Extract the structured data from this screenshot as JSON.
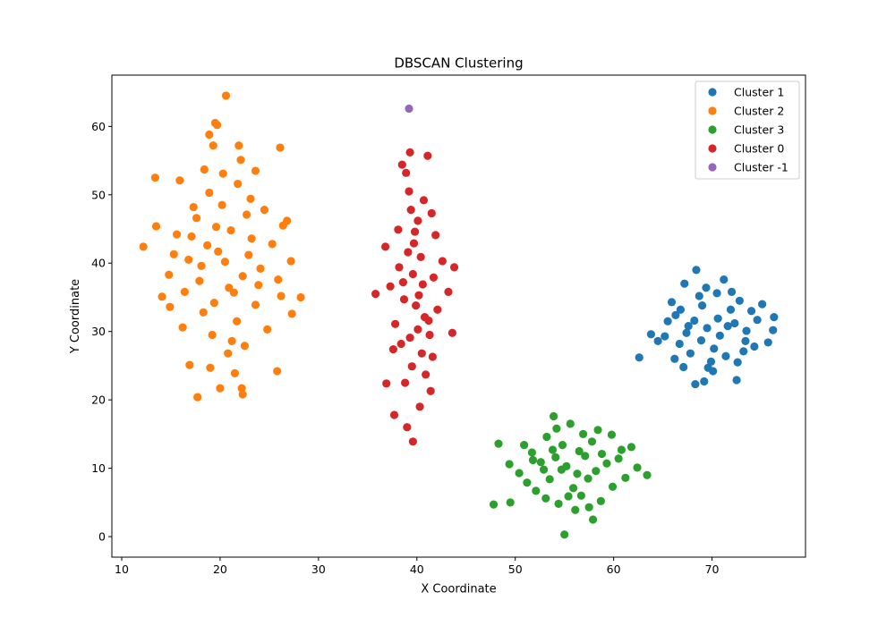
{
  "chart_data": {
    "type": "scatter",
    "title": "DBSCAN Clustering",
    "xlabel": "X Coordinate",
    "ylabel": "Y Coordinate",
    "xlim": [
      9.0,
      79.5
    ],
    "ylim": [
      -3.0,
      67.5
    ],
    "xticks": [
      10,
      20,
      30,
      40,
      50,
      60,
      70
    ],
    "yticks": [
      0,
      10,
      20,
      30,
      40,
      50,
      60
    ],
    "grid": false,
    "legend_position": "top-right",
    "series": [
      {
        "name": "Cluster 1",
        "color": "#1f77b4",
        "points": [
          [
            69.5,
            30.5
          ],
          [
            68.2,
            31.6
          ],
          [
            70.8,
            29.4
          ],
          [
            71.6,
            30.8
          ],
          [
            67.4,
            29.8
          ],
          [
            72.3,
            31.2
          ],
          [
            66.3,
            32.4
          ],
          [
            73.5,
            30.1
          ],
          [
            69.0,
            33.8
          ],
          [
            70.2,
            27.5
          ],
          [
            68.7,
            35.2
          ],
          [
            71.4,
            26.4
          ],
          [
            65.2,
            29.3
          ],
          [
            74.6,
            31.7
          ],
          [
            69.6,
            24.7
          ],
          [
            66.8,
            33.2
          ],
          [
            72.8,
            34.5
          ],
          [
            64.5,
            28.6
          ],
          [
            75.7,
            28.4
          ],
          [
            71.2,
            37.6
          ],
          [
            68.4,
            39.0
          ],
          [
            67.2,
            37.0
          ],
          [
            68.3,
            22.3
          ],
          [
            69.2,
            22.7
          ],
          [
            72.5,
            22.9
          ],
          [
            62.6,
            26.2
          ],
          [
            76.3,
            32.1
          ],
          [
            76.2,
            30.2
          ],
          [
            75.1,
            34.0
          ],
          [
            63.8,
            29.6
          ],
          [
            66.2,
            26.0
          ],
          [
            73.2,
            27.1
          ],
          [
            70.5,
            35.6
          ],
          [
            67.8,
            26.8
          ],
          [
            72.0,
            35.8
          ],
          [
            69.9,
            25.6
          ],
          [
            74.0,
            33.0
          ],
          [
            65.5,
            31.5
          ],
          [
            66.7,
            28.2
          ],
          [
            70.6,
            31.9
          ],
          [
            73.4,
            28.6
          ],
          [
            68.9,
            28.7
          ],
          [
            71.9,
            33.2
          ],
          [
            67.6,
            30.8
          ],
          [
            69.4,
            36.4
          ],
          [
            65.9,
            34.3
          ],
          [
            74.3,
            27.8
          ],
          [
            70.1,
            24.2
          ],
          [
            72.6,
            25.5
          ],
          [
            67.1,
            24.8
          ]
        ]
      },
      {
        "name": "Cluster 2",
        "color": "#ff7f0e",
        "points": [
          [
            20.5,
            40.2
          ],
          [
            18.7,
            42.6
          ],
          [
            22.3,
            38.1
          ],
          [
            19.6,
            45.3
          ],
          [
            21.4,
            35.7
          ],
          [
            17.9,
            37.4
          ],
          [
            23.2,
            43.6
          ],
          [
            16.8,
            40.5
          ],
          [
            24.1,
            39.2
          ],
          [
            20.2,
            48.5
          ],
          [
            18.3,
            32.8
          ],
          [
            22.7,
            47.1
          ],
          [
            15.6,
            44.2
          ],
          [
            25.3,
            42.8
          ],
          [
            19.2,
            29.5
          ],
          [
            21.8,
            51.6
          ],
          [
            17.3,
            48.2
          ],
          [
            23.6,
            33.9
          ],
          [
            14.8,
            38.3
          ],
          [
            26.4,
            45.5
          ],
          [
            20.8,
            26.8
          ],
          [
            18.4,
            53.7
          ],
          [
            22.1,
            55.1
          ],
          [
            16.2,
            30.6
          ],
          [
            24.8,
            30.3
          ],
          [
            19.3,
            57.2
          ],
          [
            21.5,
            23.9
          ],
          [
            13.5,
            45.4
          ],
          [
            27.2,
            40.3
          ],
          [
            12.2,
            42.4
          ],
          [
            28.2,
            35.0
          ],
          [
            26.8,
            46.2
          ],
          [
            13.4,
            52.5
          ],
          [
            20.6,
            64.5
          ],
          [
            19.5,
            60.5
          ],
          [
            19.7,
            60.2
          ],
          [
            18.9,
            58.8
          ],
          [
            21.9,
            57.2
          ],
          [
            26.1,
            56.9
          ],
          [
            17.7,
            20.4
          ],
          [
            20.0,
            21.7
          ],
          [
            22.3,
            20.8
          ],
          [
            22.2,
            21.7
          ],
          [
            25.8,
            24.2
          ],
          [
            16.9,
            25.1
          ],
          [
            14.1,
            35.1
          ],
          [
            27.3,
            32.6
          ],
          [
            15.9,
            52.1
          ],
          [
            23.6,
            53.5
          ],
          [
            20.9,
            36.4
          ],
          [
            19.8,
            41.7
          ],
          [
            21.1,
            44.8
          ],
          [
            18.1,
            39.6
          ],
          [
            22.9,
            41.2
          ],
          [
            17.1,
            43.9
          ],
          [
            23.9,
            36.8
          ],
          [
            19.4,
            34.2
          ],
          [
            21.7,
            31.5
          ],
          [
            16.4,
            35.8
          ],
          [
            24.5,
            47.8
          ],
          [
            18.9,
            50.3
          ],
          [
            22.5,
            27.9
          ],
          [
            15.3,
            41.3
          ],
          [
            25.9,
            37.6
          ],
          [
            20.3,
            53.1
          ],
          [
            17.6,
            46.6
          ],
          [
            23.1,
            49.4
          ],
          [
            14.9,
            33.6
          ],
          [
            26.2,
            35.2
          ],
          [
            19.0,
            24.7
          ],
          [
            21.2,
            28.6
          ]
        ]
      },
      {
        "name": "Cluster 3",
        "color": "#2ca02c",
        "points": [
          [
            55.2,
            10.3
          ],
          [
            54.1,
            11.6
          ],
          [
            56.3,
            9.2
          ],
          [
            53.5,
            8.4
          ],
          [
            57.1,
            11.8
          ],
          [
            52.6,
            10.9
          ],
          [
            58.2,
            9.6
          ],
          [
            54.8,
            13.4
          ],
          [
            55.9,
            7.1
          ],
          [
            51.7,
            12.3
          ],
          [
            59.3,
            10.7
          ],
          [
            53.2,
            14.6
          ],
          [
            56.7,
            6.0
          ],
          [
            50.4,
            9.3
          ],
          [
            60.5,
            11.4
          ],
          [
            54.2,
            15.8
          ],
          [
            57.8,
            13.9
          ],
          [
            52.1,
            6.7
          ],
          [
            61.2,
            8.6
          ],
          [
            55.6,
            16.5
          ],
          [
            58.7,
            5.2
          ],
          [
            49.4,
            10.6
          ],
          [
            62.4,
            10.1
          ],
          [
            53.9,
            17.6
          ],
          [
            56.1,
            3.9
          ],
          [
            48.3,
            13.6
          ],
          [
            63.4,
            9.0
          ],
          [
            47.8,
            4.7
          ],
          [
            49.5,
            5.0
          ],
          [
            55.0,
            0.3
          ],
          [
            57.9,
            2.5
          ],
          [
            59.8,
            14.9
          ],
          [
            61.8,
            13.1
          ],
          [
            54.7,
            9.8
          ],
          [
            56.5,
            12.5
          ],
          [
            53.8,
            12.7
          ],
          [
            57.4,
            8.5
          ],
          [
            52.9,
            9.8
          ],
          [
            58.8,
            12.1
          ],
          [
            55.4,
            5.9
          ],
          [
            51.2,
            7.9
          ],
          [
            59.9,
            7.3
          ],
          [
            54.4,
            4.8
          ],
          [
            56.9,
            15.0
          ],
          [
            50.9,
            13.4
          ],
          [
            60.8,
            12.7
          ],
          [
            53.1,
            5.6
          ],
          [
            57.5,
            4.3
          ],
          [
            51.8,
            11.2
          ],
          [
            58.4,
            15.6
          ]
        ]
      },
      {
        "name": "Cluster 0",
        "color": "#d62728",
        "points": [
          [
            40.2,
            35.3
          ],
          [
            39.6,
            38.4
          ],
          [
            40.8,
            32.1
          ],
          [
            39.1,
            41.6
          ],
          [
            41.3,
            29.5
          ],
          [
            38.7,
            34.7
          ],
          [
            41.7,
            37.9
          ],
          [
            39.8,
            44.6
          ],
          [
            40.5,
            26.8
          ],
          [
            38.2,
            39.4
          ],
          [
            42.1,
            33.2
          ],
          [
            39.4,
            47.8
          ],
          [
            40.9,
            23.7
          ],
          [
            37.8,
            31.1
          ],
          [
            42.6,
            40.3
          ],
          [
            39.2,
            50.5
          ],
          [
            41.4,
            21.3
          ],
          [
            37.3,
            36.6
          ],
          [
            43.2,
            35.8
          ],
          [
            38.9,
            53.2
          ],
          [
            40.3,
            19.0
          ],
          [
            36.8,
            42.4
          ],
          [
            43.8,
            39.4
          ],
          [
            38.5,
            54.4
          ],
          [
            41.1,
            55.7
          ],
          [
            39.3,
            56.2
          ],
          [
            39.6,
            13.9
          ],
          [
            37.7,
            17.8
          ],
          [
            35.8,
            35.5
          ],
          [
            43.6,
            29.8
          ],
          [
            36.9,
            22.4
          ],
          [
            39.0,
            16.0
          ],
          [
            40.1,
            30.3
          ],
          [
            39.7,
            42.9
          ],
          [
            40.6,
            36.9
          ],
          [
            38.4,
            28.2
          ],
          [
            41.9,
            44.1
          ],
          [
            39.5,
            24.9
          ],
          [
            40.7,
            49.2
          ],
          [
            38.1,
            44.9
          ],
          [
            41.6,
            26.3
          ],
          [
            39.9,
            33.8
          ],
          [
            40.4,
            40.9
          ],
          [
            38.6,
            37.2
          ],
          [
            41.2,
            31.6
          ],
          [
            39.3,
            29.1
          ],
          [
            40.1,
            46.2
          ],
          [
            38.8,
            22.5
          ],
          [
            41.5,
            47.3
          ],
          [
            37.6,
            27.4
          ]
        ]
      },
      {
        "name": "Cluster -1",
        "color": "#9467bd",
        "points": [
          [
            39.2,
            62.6
          ]
        ]
      }
    ]
  }
}
